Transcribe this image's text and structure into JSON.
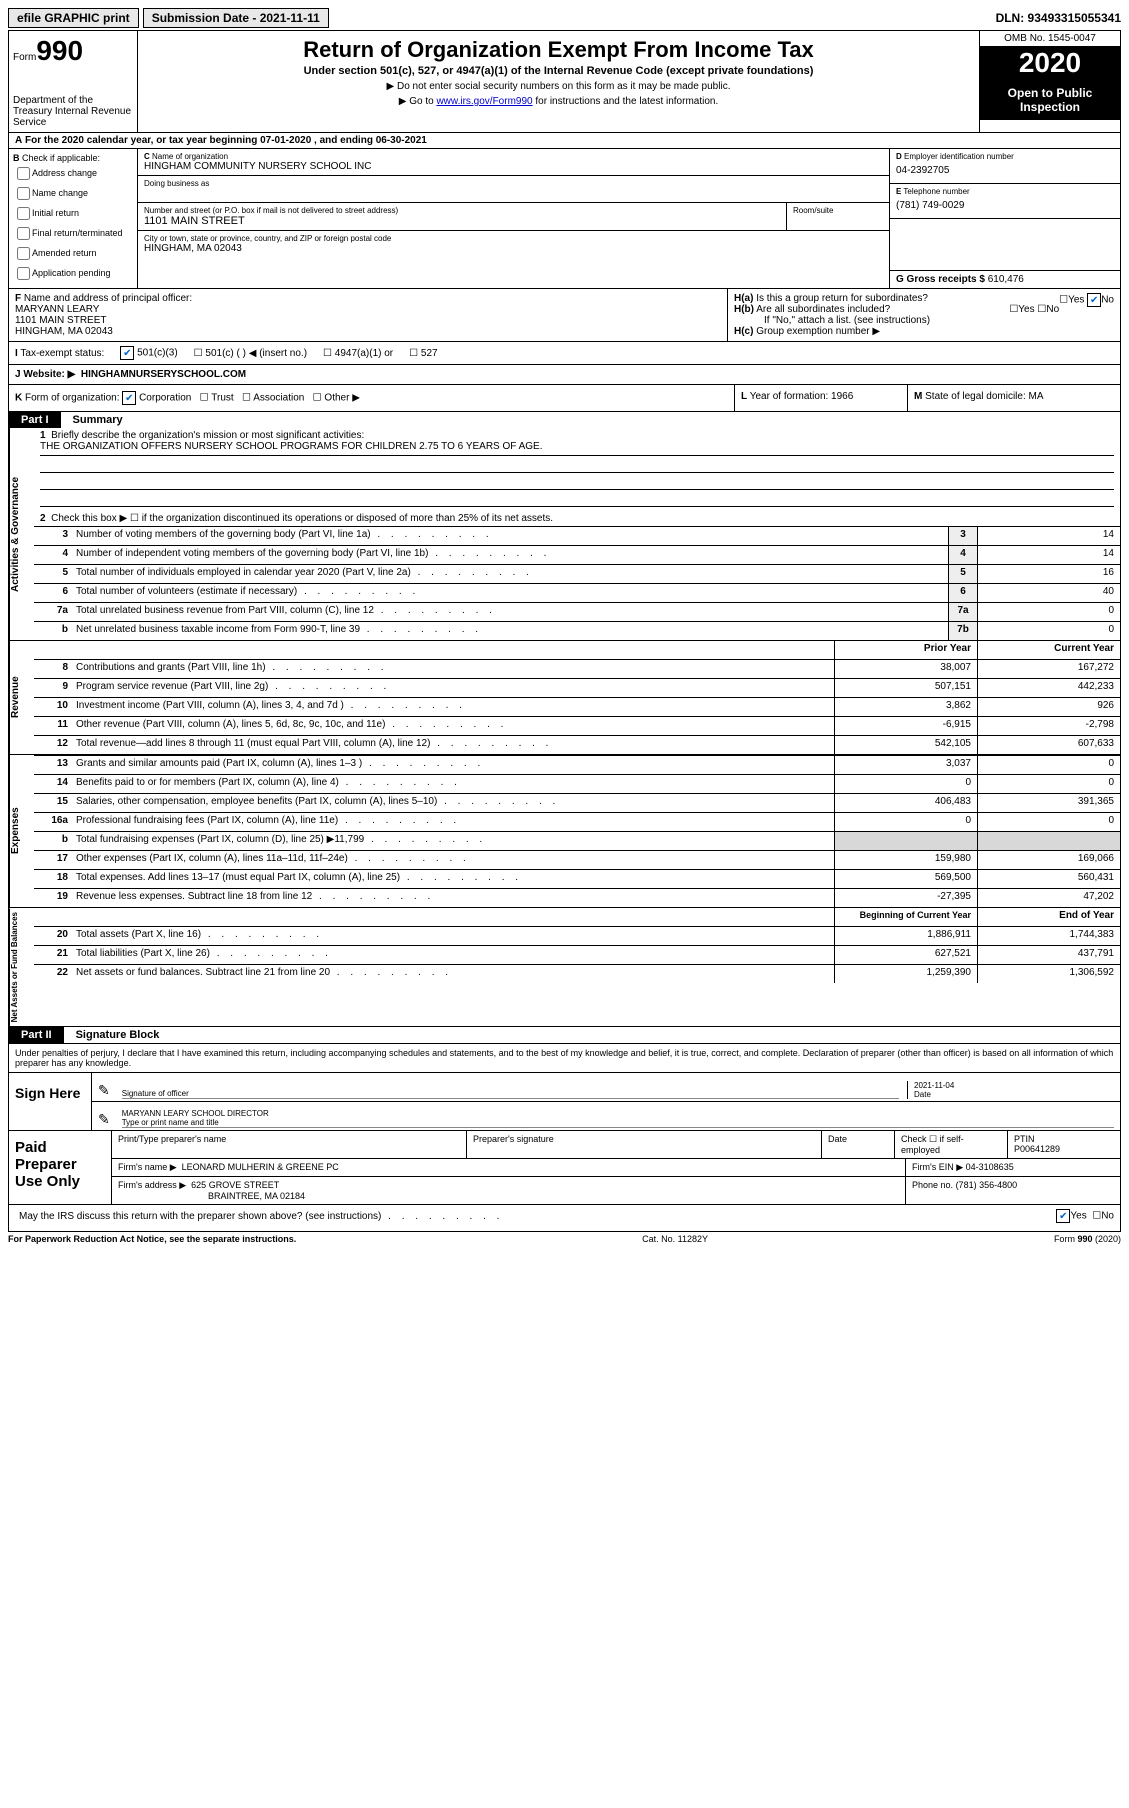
{
  "topbar": {
    "efile": "efile GRAPHIC print",
    "submission_label": "Submission Date - 2021-11-11",
    "dln": "DLN: 93493315055341"
  },
  "header": {
    "form_prefix": "Form",
    "form_number": "990",
    "dept": "Department of the Treasury\nInternal Revenue Service",
    "title": "Return of Organization Exempt From Income Tax",
    "subtitle": "Under section 501(c), 527, or 4947(a)(1) of the Internal Revenue Code (except private foundations)",
    "note1": "Do not enter social security numbers on this form as it may be made public.",
    "note2_pre": "Go to ",
    "note2_link": "www.irs.gov/Form990",
    "note2_post": " for instructions and the latest information.",
    "omb": "OMB No. 1545-0047",
    "year": "2020",
    "open": "Open to Public Inspection"
  },
  "rowA": "For the 2020 calendar year, or tax year beginning 07-01-2020     , and ending 06-30-2021",
  "boxB": {
    "label": "Check if applicable:",
    "items": [
      "Address change",
      "Name change",
      "Initial return",
      "Final return/terminated",
      "Amended return",
      "Application pending"
    ]
  },
  "boxC": {
    "name_lbl": "Name of organization",
    "name": "HINGHAM COMMUNITY NURSERY SCHOOL INC",
    "dba_lbl": "Doing business as",
    "addr_lbl": "Number and street (or P.O. box if mail is not delivered to street address)",
    "room_lbl": "Room/suite",
    "addr": "1101 MAIN STREET",
    "city_lbl": "City or town, state or province, country, and ZIP or foreign postal code",
    "city": "HINGHAM, MA  02043"
  },
  "boxD": {
    "lbl": "Employer identification number",
    "val": "04-2392705"
  },
  "boxE": {
    "lbl": "Telephone number",
    "val": "(781) 749-0029"
  },
  "boxG": {
    "lbl": "G Gross receipts $",
    "val": "610,476"
  },
  "boxF": {
    "lbl": "Name and address of principal officer:",
    "name": "MARYANN LEARY",
    "addr1": "1101 MAIN STREET",
    "addr2": "HINGHAM, MA  02043"
  },
  "boxH": {
    "a": "Is this a group return for subordinates?",
    "b": "Are all subordinates included?",
    "b_note": "If \"No,\" attach a list. (see instructions)",
    "c": "Group exemption number ▶"
  },
  "taxExempt": {
    "lbl": "Tax-exempt status:",
    "opt1": "501(c)(3)",
    "opt2": "501(c) (   ) ◀ (insert no.)",
    "opt3": "4947(a)(1) or",
    "opt4": "527"
  },
  "rowJ": {
    "lbl": "Website: ▶",
    "val": "HINGHAMNURSERYSCHOOL.COM"
  },
  "rowK": {
    "lbl": "Form of organization:",
    "corp": "Corporation",
    "trust": "Trust",
    "assoc": "Association",
    "other": "Other ▶",
    "L": "Year of formation: 1966",
    "M": "State of legal domicile: MA"
  },
  "part1": {
    "tab": "Part I",
    "title": "Summary"
  },
  "mission": {
    "lbl": "Briefly describe the organization's mission or most significant activities:",
    "text": "THE ORGANIZATION OFFERS NURSERY SCHOOL PROGRAMS FOR CHILDREN 2.75 TO 6 YEARS OF AGE."
  },
  "line2": "Check this box ▶ ☐  if the organization discontinued its operations or disposed of more than 25% of its net assets.",
  "governance": {
    "side": "Activities & Governance",
    "rows": [
      {
        "n": "3",
        "desc": "Number of voting members of the governing body (Part VI, line 1a)",
        "box": "3",
        "v": "14"
      },
      {
        "n": "4",
        "desc": "Number of independent voting members of the governing body (Part VI, line 1b)",
        "box": "4",
        "v": "14"
      },
      {
        "n": "5",
        "desc": "Total number of individuals employed in calendar year 2020 (Part V, line 2a)",
        "box": "5",
        "v": "16"
      },
      {
        "n": "6",
        "desc": "Total number of volunteers (estimate if necessary)",
        "box": "6",
        "v": "40"
      },
      {
        "n": "7a",
        "desc": "Total unrelated business revenue from Part VIII, column (C), line 12",
        "box": "7a",
        "v": "0"
      },
      {
        "n": "b",
        "desc": "Net unrelated business taxable income from Form 990-T, line 39",
        "box": "7b",
        "v": "0"
      }
    ]
  },
  "revHdr": {
    "prior": "Prior Year",
    "current": "Current Year"
  },
  "revenue": {
    "side": "Revenue",
    "rows": [
      {
        "n": "8",
        "desc": "Contributions and grants (Part VIII, line 1h)",
        "p": "38,007",
        "c": "167,272"
      },
      {
        "n": "9",
        "desc": "Program service revenue (Part VIII, line 2g)",
        "p": "507,151",
        "c": "442,233"
      },
      {
        "n": "10",
        "desc": "Investment income (Part VIII, column (A), lines 3, 4, and 7d )",
        "p": "3,862",
        "c": "926"
      },
      {
        "n": "11",
        "desc": "Other revenue (Part VIII, column (A), lines 5, 6d, 8c, 9c, 10c, and 11e)",
        "p": "-6,915",
        "c": "-2,798"
      },
      {
        "n": "12",
        "desc": "Total revenue—add lines 8 through 11 (must equal Part VIII, column (A), line 12)",
        "p": "542,105",
        "c": "607,633"
      }
    ]
  },
  "expenses": {
    "side": "Expenses",
    "rows": [
      {
        "n": "13",
        "desc": "Grants and similar amounts paid (Part IX, column (A), lines 1–3 )",
        "p": "3,037",
        "c": "0"
      },
      {
        "n": "14",
        "desc": "Benefits paid to or for members (Part IX, column (A), line 4)",
        "p": "0",
        "c": "0"
      },
      {
        "n": "15",
        "desc": "Salaries, other compensation, employee benefits (Part IX, column (A), lines 5–10)",
        "p": "406,483",
        "c": "391,365"
      },
      {
        "n": "16a",
        "desc": "Professional fundraising fees (Part IX, column (A), line 11e)",
        "p": "0",
        "c": "0"
      },
      {
        "n": "b",
        "desc": "Total fundraising expenses (Part IX, column (D), line 25) ▶11,799",
        "p": "",
        "c": "",
        "shade": true
      },
      {
        "n": "17",
        "desc": "Other expenses (Part IX, column (A), lines 11a–11d, 11f–24e)",
        "p": "159,980",
        "c": "169,066"
      },
      {
        "n": "18",
        "desc": "Total expenses. Add lines 13–17 (must equal Part IX, column (A), line 25)",
        "p": "569,500",
        "c": "560,431"
      },
      {
        "n": "19",
        "desc": "Revenue less expenses. Subtract line 18 from line 12",
        "p": "-27,395",
        "c": "47,202"
      }
    ]
  },
  "netHdr": {
    "begin": "Beginning of Current Year",
    "end": "End of Year"
  },
  "netassets": {
    "side": "Net Assets or Fund Balances",
    "rows": [
      {
        "n": "20",
        "desc": "Total assets (Part X, line 16)",
        "p": "1,886,911",
        "c": "1,744,383"
      },
      {
        "n": "21",
        "desc": "Total liabilities (Part X, line 26)",
        "p": "627,521",
        "c": "437,791"
      },
      {
        "n": "22",
        "desc": "Net assets or fund balances. Subtract line 21 from line 20",
        "p": "1,259,390",
        "c": "1,306,592"
      }
    ]
  },
  "part2": {
    "tab": "Part II",
    "title": "Signature Block"
  },
  "penalties": "Under penalties of perjury, I declare that I have examined this return, including accompanying schedules and statements, and to the best of my knowledge and belief, it is true, correct, and complete. Declaration of preparer (other than officer) is based on all information of which preparer has any knowledge.",
  "sign": {
    "here": "Sign Here",
    "sig_lbl": "Signature of officer",
    "date_lbl": "Date",
    "date_val": "2021-11-04",
    "name": "MARYANN LEARY  SCHOOL DIRECTOR",
    "name_lbl": "Type or print name and title"
  },
  "paid": {
    "lbl": "Paid Preparer Use Only",
    "h1": "Print/Type preparer's name",
    "h2": "Preparer's signature",
    "h3": "Date",
    "h4_pre": "Check ☐ if self-employed",
    "h5": "PTIN",
    "ptin": "P00641289",
    "firm_lbl": "Firm's name    ▶",
    "firm": "LEONARD MULHERIN & GREENE PC",
    "ein_lbl": "Firm's EIN ▶",
    "ein": "04-3108635",
    "addr_lbl": "Firm's address ▶",
    "addr1": "625 GROVE STREET",
    "addr2": "BRAINTREE, MA  02184",
    "phone_lbl": "Phone no.",
    "phone": "(781) 356-4800"
  },
  "discuss": "May the IRS discuss this return with the preparer shown above? (see instructions)",
  "footer": {
    "left": "For Paperwork Reduction Act Notice, see the separate instructions.",
    "mid": "Cat. No. 11282Y",
    "right": "Form 990 (2020)"
  }
}
